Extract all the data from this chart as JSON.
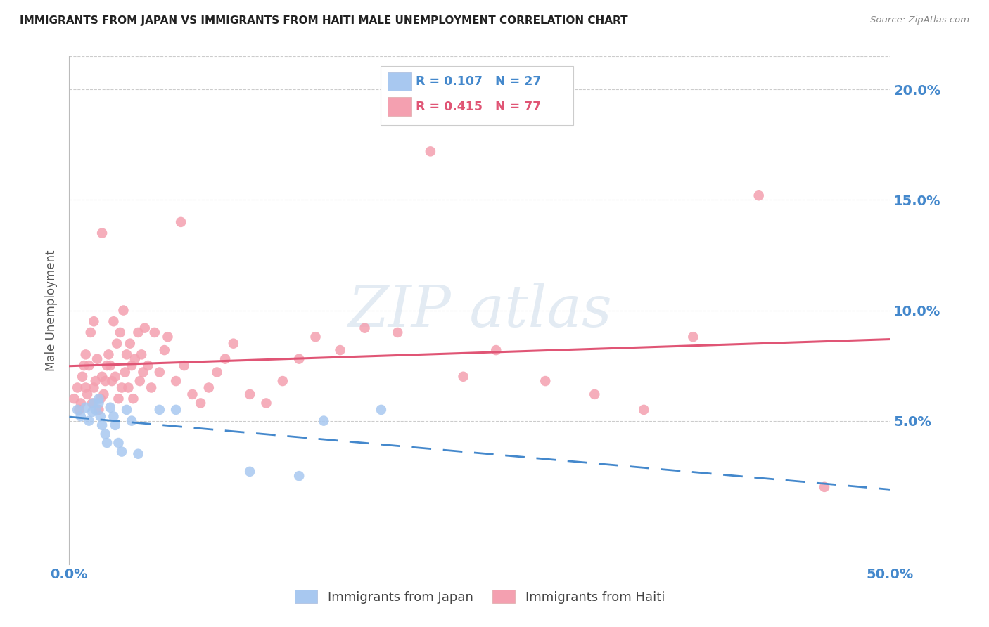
{
  "title": "IMMIGRANTS FROM JAPAN VS IMMIGRANTS FROM HAITI MALE UNEMPLOYMENT CORRELATION CHART",
  "source": "Source: ZipAtlas.com",
  "ylabel": "Male Unemployment",
  "yticks": [
    0.0,
    0.05,
    0.1,
    0.15,
    0.2
  ],
  "ytick_labels": [
    "",
    "5.0%",
    "10.0%",
    "15.0%",
    "20.0%"
  ],
  "xlim": [
    0.0,
    0.5
  ],
  "ylim": [
    -0.015,
    0.215
  ],
  "legend_japan_r": "R = 0.107",
  "legend_japan_n": "N = 27",
  "legend_haiti_r": "R = 0.415",
  "legend_haiti_n": "N = 77",
  "color_japan": "#A8C8F0",
  "color_haiti": "#F4A0B0",
  "line_japan_color": "#4488CC",
  "line_haiti_color": "#E05575",
  "background_color": "#FFFFFF",
  "grid_color": "#CCCCCC",
  "axis_label_color": "#4488CC",
  "title_color": "#222222",
  "japan_x": [
    0.005,
    0.007,
    0.01,
    0.012,
    0.014,
    0.015,
    0.016,
    0.018,
    0.018,
    0.019,
    0.02,
    0.022,
    0.023,
    0.025,
    0.027,
    0.028,
    0.03,
    0.032,
    0.035,
    0.038,
    0.042,
    0.055,
    0.065,
    0.11,
    0.14,
    0.155,
    0.19
  ],
  "japan_y": [
    0.055,
    0.052,
    0.056,
    0.05,
    0.054,
    0.058,
    0.055,
    0.058,
    0.06,
    0.052,
    0.048,
    0.044,
    0.04,
    0.056,
    0.052,
    0.048,
    0.04,
    0.036,
    0.055,
    0.05,
    0.035,
    0.055,
    0.055,
    0.027,
    0.025,
    0.05,
    0.055
  ],
  "haiti_x": [
    0.003,
    0.005,
    0.006,
    0.007,
    0.008,
    0.009,
    0.01,
    0.01,
    0.011,
    0.012,
    0.013,
    0.014,
    0.015,
    0.015,
    0.016,
    0.017,
    0.018,
    0.019,
    0.02,
    0.02,
    0.021,
    0.022,
    0.023,
    0.024,
    0.025,
    0.026,
    0.027,
    0.028,
    0.029,
    0.03,
    0.031,
    0.032,
    0.033,
    0.034,
    0.035,
    0.036,
    0.037,
    0.038,
    0.039,
    0.04,
    0.042,
    0.043,
    0.044,
    0.045,
    0.046,
    0.048,
    0.05,
    0.052,
    0.055,
    0.058,
    0.06,
    0.065,
    0.068,
    0.07,
    0.075,
    0.08,
    0.085,
    0.09,
    0.095,
    0.1,
    0.11,
    0.12,
    0.13,
    0.14,
    0.15,
    0.165,
    0.18,
    0.2,
    0.22,
    0.24,
    0.26,
    0.29,
    0.32,
    0.35,
    0.38,
    0.42,
    0.46
  ],
  "haiti_y": [
    0.06,
    0.065,
    0.055,
    0.058,
    0.07,
    0.075,
    0.065,
    0.08,
    0.062,
    0.075,
    0.09,
    0.058,
    0.065,
    0.095,
    0.068,
    0.078,
    0.055,
    0.06,
    0.07,
    0.135,
    0.062,
    0.068,
    0.075,
    0.08,
    0.075,
    0.068,
    0.095,
    0.07,
    0.085,
    0.06,
    0.09,
    0.065,
    0.1,
    0.072,
    0.08,
    0.065,
    0.085,
    0.075,
    0.06,
    0.078,
    0.09,
    0.068,
    0.08,
    0.072,
    0.092,
    0.075,
    0.065,
    0.09,
    0.072,
    0.082,
    0.088,
    0.068,
    0.14,
    0.075,
    0.062,
    0.058,
    0.065,
    0.072,
    0.078,
    0.085,
    0.062,
    0.058,
    0.068,
    0.078,
    0.088,
    0.082,
    0.092,
    0.09,
    0.172,
    0.07,
    0.082,
    0.068,
    0.062,
    0.055,
    0.088,
    0.152,
    0.02
  ]
}
